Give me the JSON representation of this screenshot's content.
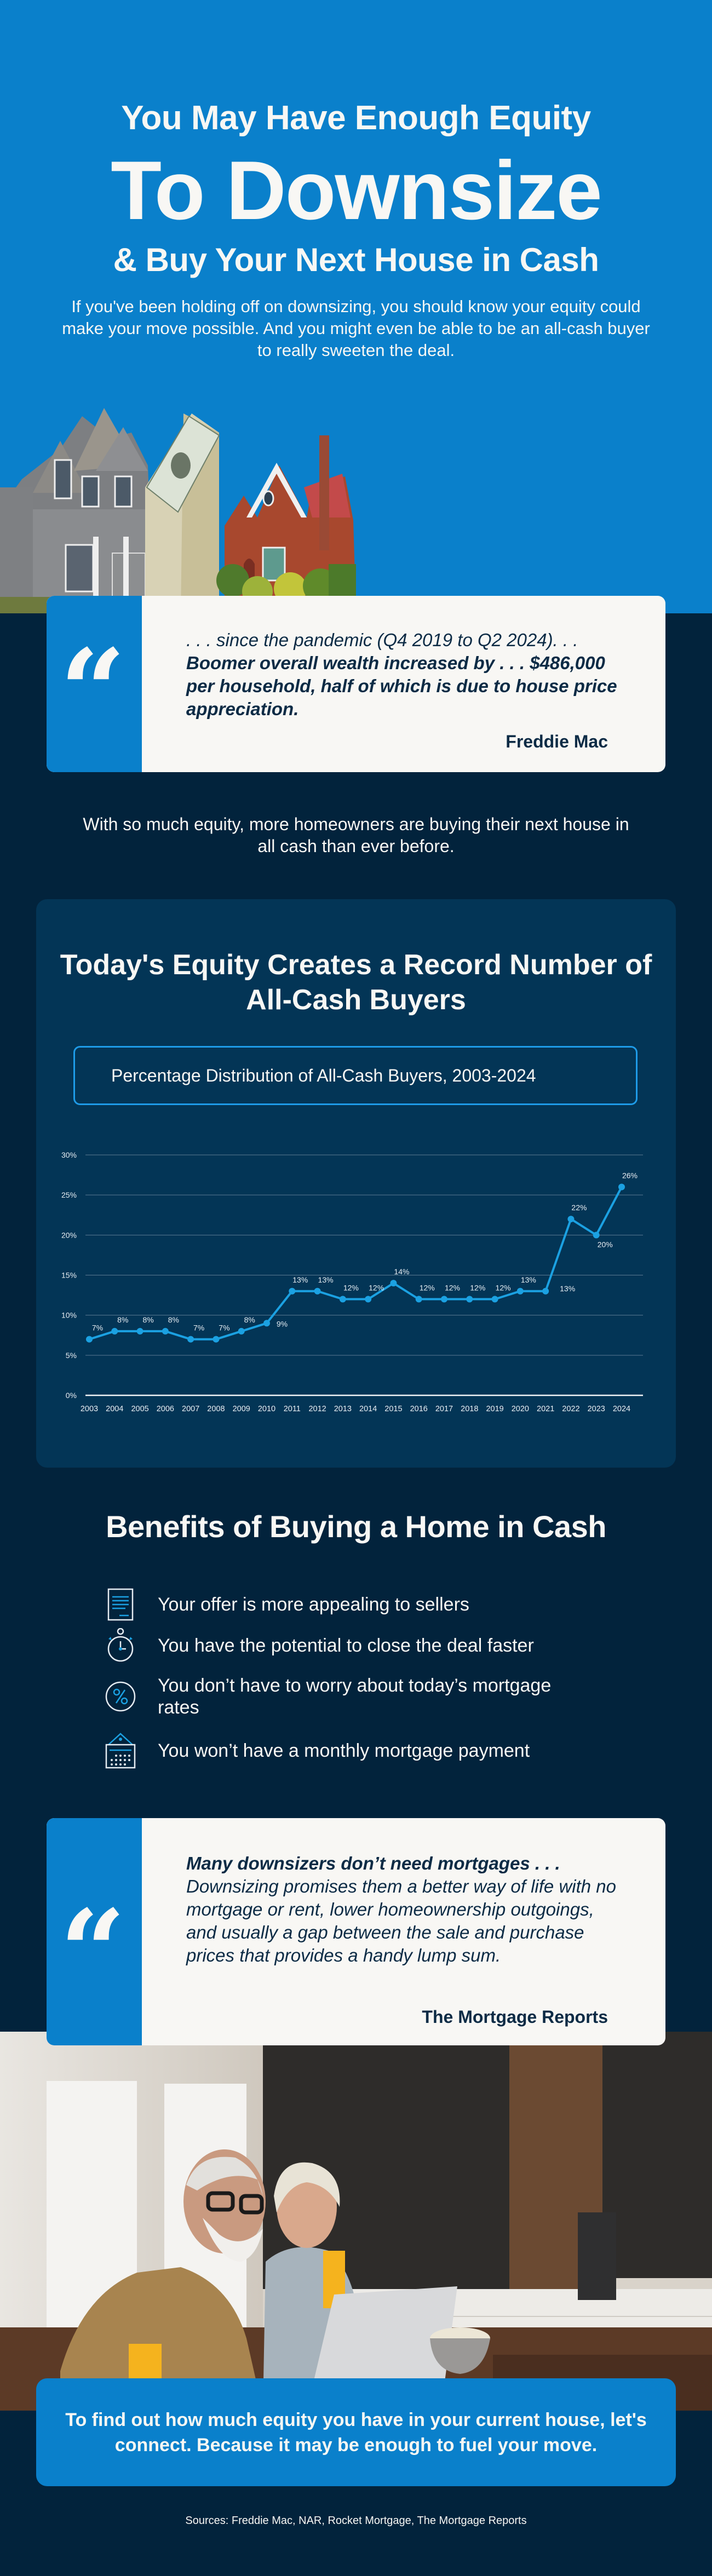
{
  "hero": {
    "title_line1": "You May Have Enough Equity",
    "title_line2": "To Downsize",
    "title_line3": "& Buy Your Next House in Cash",
    "subtitle": "If you've been holding off on downsizing, you should know your equity could make your move possible. And you might even be able to be an all-cash buyer to really sweeten the deal.",
    "image_alt": "Gray two-story house, stack of $100 bills, red brick house"
  },
  "quote1": {
    "intro": ". . . since the pandemic (Q4 2019 to Q2 2024). . .",
    "bold": "Boomer overall wealth increased by . . . $486,000 per household, half of which is due to house price appreciation.",
    "source": "Freddie Mac"
  },
  "intro_text": "With so much equity, more homeowners are buying their next house in all cash than ever before.",
  "chart_section": {
    "title": "Today's Equity Creates a Record Number of All-Cash Buyers",
    "subtitle": "Percentage Distribution of All-Cash Buyers, 2003-2024"
  },
  "chart_data": {
    "type": "line",
    "title": "Percentage Distribution of All-Cash Buyers, 2003-2024",
    "xlabel": "",
    "ylabel": "",
    "categories": [
      "2003",
      "2004",
      "2005",
      "2006",
      "2007",
      "2008",
      "2009",
      "2010",
      "2011",
      "2012",
      "2013",
      "2014",
      "2015",
      "2016",
      "2017",
      "2018",
      "2019",
      "2020",
      "2021",
      "2022",
      "2023",
      "2024"
    ],
    "values": [
      7,
      8,
      8,
      8,
      7,
      7,
      8,
      9,
      13,
      13,
      12,
      12,
      14,
      12,
      12,
      12,
      12,
      13,
      13,
      22,
      20,
      26
    ],
    "labels": [
      "7%",
      "8%",
      "8%",
      "8%",
      "7%",
      "7%",
      "8%",
      "9%",
      "13%",
      "13%",
      "12%",
      "12%",
      "14%",
      "12%",
      "12%",
      "12%",
      "12%",
      "13%",
      "13%",
      "22%",
      "20%",
      "26%"
    ],
    "yticks": [
      "0%",
      "5%",
      "10%",
      "15%",
      "20%",
      "25%",
      "30%"
    ],
    "ylim": [
      0,
      30
    ],
    "grid": true,
    "legend": "none",
    "line_color": "#1BA1E2"
  },
  "benefits": {
    "title": "Benefits of Buying a Home in Cash",
    "items": [
      {
        "icon": "document-icon",
        "text": "Your offer is more appealing to sellers"
      },
      {
        "icon": "stopwatch-icon",
        "text": "You have the potential to close the deal faster"
      },
      {
        "icon": "percent-icon",
        "text": "You don’t have to worry about today’s mortgage rates"
      },
      {
        "icon": "calendar-icon",
        "text": "You won’t have a monthly mortgage payment"
      }
    ]
  },
  "quote2": {
    "bold": "Many downsizers don’t need mortgages . . .",
    "body": "Downsizing promises them a better way of life with no mortgage or rent, lower homeownership outgoings, and usually a gap between the sale and purchase prices that provides a handy lump sum.",
    "source": "The Mortgage Reports"
  },
  "photo": {
    "alt": "Older couple looking at a laptop in a kitchen"
  },
  "cta": {
    "text": "To find out how much equity you have in your current house, let's connect. Because it may be enough to fuel your move."
  },
  "footer": {
    "sources": "Sources: Freddie Mac, NAR, Rocket Mortgage, The Mortgage Reports"
  },
  "colors": {
    "brand_blue": "#0A80CB",
    "navy": "#02233C",
    "panel": "#033556",
    "accent": "#1BA1E2",
    "card": "#F8F7F4",
    "card_text": "#0C2B45"
  }
}
